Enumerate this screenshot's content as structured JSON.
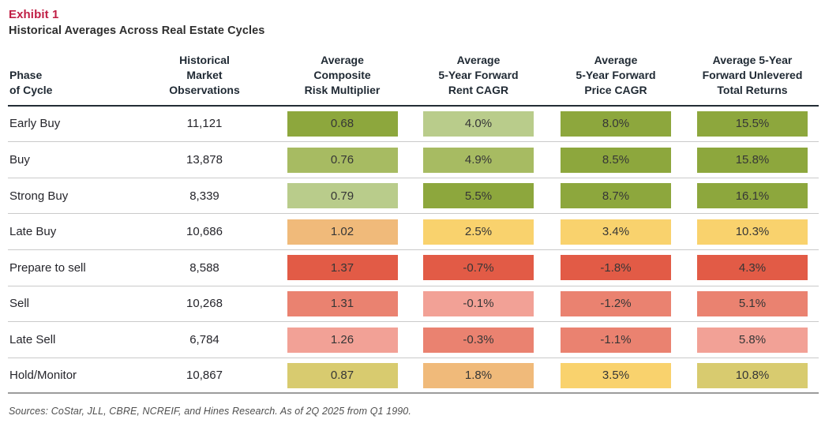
{
  "exhibit": {
    "label": "Exhibit 1",
    "title": "Historical Averages Across Real Estate Cycles"
  },
  "accent_color": "#C01F45",
  "palette": {
    "green_dark": "#8DA73D",
    "green_medium": "#A7BB62",
    "green_light": "#B9CC8B",
    "yellow": "#F9D26D",
    "orange": "#F0BA7A",
    "khaki": "#D8CB6F",
    "red": "#E25B46",
    "salmon": "#EA8270",
    "salmon_light": "#F2A196"
  },
  "table": {
    "headers": [
      "Phase\nof Cycle",
      "Historical\nMarket\nObservations",
      "Average\nComposite\nRisk Multiplier",
      "Average\n5-Year Forward\nRent CAGR",
      "Average\n5-Year Forward\nPrice CAGR",
      "Average 5-Year\nForward Unlevered\nTotal Returns"
    ],
    "rows": [
      {
        "phase": "Early Buy",
        "observations": "11,121",
        "cells": [
          {
            "value": "0.68",
            "color": "green_dark"
          },
          {
            "value": "4.0%",
            "color": "green_light"
          },
          {
            "value": "8.0%",
            "color": "green_dark"
          },
          {
            "value": "15.5%",
            "color": "green_dark"
          }
        ]
      },
      {
        "phase": "Buy",
        "observations": "13,878",
        "cells": [
          {
            "value": "0.76",
            "color": "green_medium"
          },
          {
            "value": "4.9%",
            "color": "green_medium"
          },
          {
            "value": "8.5%",
            "color": "green_dark"
          },
          {
            "value": "15.8%",
            "color": "green_dark"
          }
        ]
      },
      {
        "phase": "Strong Buy",
        "observations": "8,339",
        "cells": [
          {
            "value": "0.79",
            "color": "green_light"
          },
          {
            "value": "5.5%",
            "color": "green_dark"
          },
          {
            "value": "8.7%",
            "color": "green_dark"
          },
          {
            "value": "16.1%",
            "color": "green_dark"
          }
        ]
      },
      {
        "phase": "Late Buy",
        "observations": "10,686",
        "cells": [
          {
            "value": "1.02",
            "color": "orange"
          },
          {
            "value": "2.5%",
            "color": "yellow"
          },
          {
            "value": "3.4%",
            "color": "yellow"
          },
          {
            "value": "10.3%",
            "color": "yellow"
          }
        ]
      },
      {
        "phase": "Prepare to sell",
        "observations": "8,588",
        "cells": [
          {
            "value": "1.37",
            "color": "red"
          },
          {
            "value": "-0.7%",
            "color": "red"
          },
          {
            "value": "-1.8%",
            "color": "red"
          },
          {
            "value": "4.3%",
            "color": "red"
          }
        ]
      },
      {
        "phase": "Sell",
        "observations": "10,268",
        "cells": [
          {
            "value": "1.31",
            "color": "salmon"
          },
          {
            "value": "-0.1%",
            "color": "salmon_light"
          },
          {
            "value": "-1.2%",
            "color": "salmon"
          },
          {
            "value": "5.1%",
            "color": "salmon"
          }
        ]
      },
      {
        "phase": "Late Sell",
        "observations": "6,784",
        "cells": [
          {
            "value": "1.26",
            "color": "salmon_light"
          },
          {
            "value": "-0.3%",
            "color": "salmon"
          },
          {
            "value": "-1.1%",
            "color": "salmon"
          },
          {
            "value": "5.8%",
            "color": "salmon_light"
          }
        ]
      },
      {
        "phase": "Hold/Monitor",
        "observations": "10,867",
        "cells": [
          {
            "value": "0.87",
            "color": "khaki"
          },
          {
            "value": "1.8%",
            "color": "orange"
          },
          {
            "value": "3.5%",
            "color": "yellow"
          },
          {
            "value": "10.8%",
            "color": "khaki"
          }
        ]
      }
    ]
  },
  "footer": {
    "sources": "Sources: CoStar, JLL, CBRE, NCREIF, and Hines Research. As of 2Q 2025 from Q1 1990."
  },
  "chart_data": {
    "type": "table",
    "title": "Historical Averages Across Real Estate Cycles",
    "subtitle": "Exhibit 1",
    "columns": [
      "Phase of Cycle",
      "Historical Market Observations",
      "Average Composite Risk Multiplier",
      "Average 5-Year Forward Rent CAGR",
      "Average 5-Year Forward Price CAGR",
      "Average 5-Year Forward Unlevered Total Returns"
    ],
    "rows": [
      [
        "Early Buy",
        11121,
        0.68,
        4.0,
        8.0,
        15.5
      ],
      [
        "Buy",
        13878,
        0.76,
        4.9,
        8.5,
        15.8
      ],
      [
        "Strong Buy",
        8339,
        0.79,
        5.5,
        8.7,
        16.1
      ],
      [
        "Late Buy",
        10686,
        1.02,
        2.5,
        3.4,
        10.3
      ],
      [
        "Prepare to sell",
        8588,
        1.37,
        -0.7,
        -1.8,
        4.3
      ],
      [
        "Sell",
        10268,
        1.31,
        -0.1,
        -1.2,
        5.1
      ],
      [
        "Late Sell",
        6784,
        1.26,
        -0.3,
        -1.1,
        5.8
      ],
      [
        "Hold/Monitor",
        10867,
        0.87,
        1.8,
        3.5,
        10.8
      ]
    ],
    "units": {
      "rent_cagr": "%",
      "price_cagr": "%",
      "total_returns": "%"
    },
    "layout_hints": "last four columns rendered as heatmap chips colored green (favorable) to red (unfavorable)",
    "source_note": "Sources: CoStar, JLL, CBRE, NCREIF, and Hines Research. As of 2Q 2025 from Q1 1990."
  }
}
